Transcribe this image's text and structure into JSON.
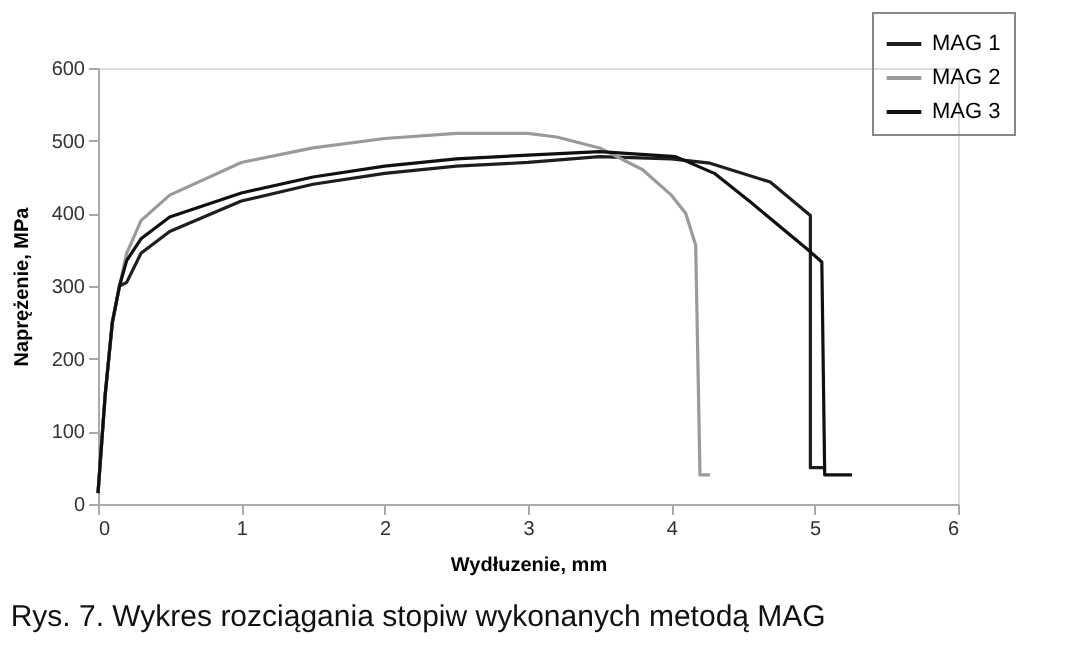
{
  "chart_data": {
    "type": "line",
    "xlabel": "Wydłuzenie, mm",
    "ylabel": "Naprężenie, MPa",
    "annotations": [
      "Rys. 7. Wykres rozciągania stopiw wykonanych metodą MAG"
    ],
    "xlim": [
      0,
      6
    ],
    "xticks": [
      0,
      1,
      2,
      3,
      4,
      5,
      6
    ],
    "ylim": [
      0,
      600
    ],
    "yticks": [
      0,
      100,
      200,
      300,
      400,
      500,
      600
    ],
    "grid": false,
    "legend": "top right",
    "marker": "none",
    "line_style": "solid",
    "series": [
      {
        "name": "MAG 1",
        "color": "#1e1e1e",
        "x": [
          0,
          0.05,
          0.1,
          0.15,
          0.2,
          0.3,
          0.5,
          1,
          1.5,
          2,
          2.5,
          3,
          3.5,
          4,
          4.27,
          4.69,
          4.97,
          4.97,
          5.06
        ],
        "values": [
          15,
          150,
          250,
          300,
          305,
          345,
          375,
          417,
          440,
          455,
          465,
          470,
          478,
          475,
          469,
          443,
          397,
          50,
          50
        ]
      },
      {
        "name": "MAG 2",
        "color": "#9a9a9a",
        "x": [
          0,
          0.05,
          0.1,
          0.15,
          0.2,
          0.3,
          0.5,
          1,
          1.5,
          2,
          2.5,
          3,
          3.2,
          3.5,
          3.8,
          4,
          4.1,
          4.17,
          4.2,
          4.27
        ],
        "values": [
          15,
          150,
          250,
          300,
          345,
          390,
          425,
          470,
          490,
          503,
          510,
          510,
          505,
          490,
          460,
          425,
          400,
          356,
          40,
          40
        ]
      },
      {
        "name": "MAG 3",
        "color": "#101010",
        "x": [
          0,
          0.05,
          0.1,
          0.15,
          0.2,
          0.3,
          0.5,
          1,
          1.5,
          2,
          2.5,
          3,
          3.5,
          4.03,
          4.3,
          4.55,
          4.97,
          5.05,
          5.07,
          5.26
        ],
        "values": [
          15,
          150,
          250,
          300,
          335,
          365,
          395,
          428,
          450,
          465,
          475,
          480,
          485,
          478,
          455,
          416,
          347,
          333,
          40,
          40
        ]
      }
    ]
  }
}
